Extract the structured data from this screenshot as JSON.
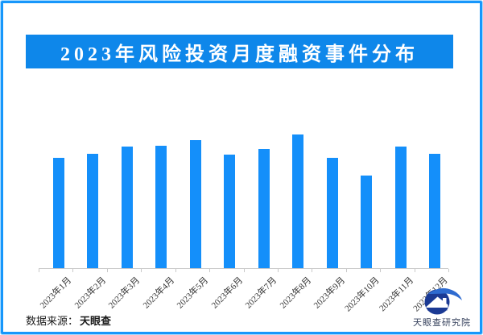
{
  "page": {
    "border_color": "#1797fb",
    "border_glow_color": "#a9dbfe",
    "background": "#ffffff"
  },
  "title": {
    "text": "2023年风险投资月度融资事件分布",
    "bg_color": "#0e87ea",
    "text_color": "#ffffff"
  },
  "chart_data": {
    "type": "bar",
    "title": "2023年风险投资月度融资事件分布",
    "categories": [
      "2023年1月",
      "2023年2月",
      "2023年3月",
      "2023年4月",
      "2023年5月",
      "2023年6月",
      "2023年7月",
      "2023年8月",
      "2023年9月",
      "2023年10月",
      "2023年11月",
      "2023年12月"
    ],
    "values": [
      137,
      142,
      151,
      152,
      159,
      141,
      148,
      166,
      137,
      115,
      151,
      142
    ],
    "value_unit": "relative bar height in px (no y-axis scale shown in image)",
    "xlabel": "",
    "ylabel": "",
    "y_axis": "hidden",
    "grid": "off",
    "legend": "none",
    "bar_color": "#148ffa",
    "axis_color": "#c9c9c9",
    "label_color": "#333333",
    "label_rotation_deg": -45
  },
  "footer": {
    "source_label": "数据来源：",
    "source_value": "天眼查",
    "brand": "天眼查研究院",
    "brand_color": "#36415c",
    "logo_dark_blue": "#1b3a94",
    "logo_light_blue": "#2e6bd0"
  }
}
